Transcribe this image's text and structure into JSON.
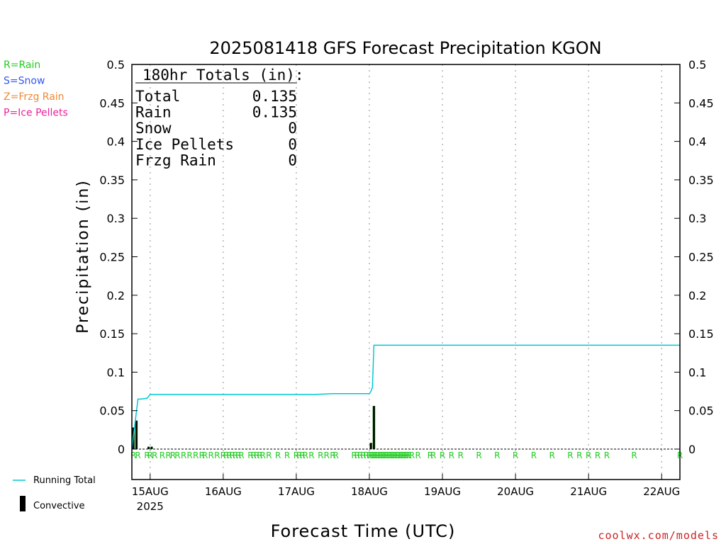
{
  "chart_data": {
    "type": "bar",
    "title": "2025081418 GFS Forecast Precipitation KGON",
    "ylabel": "Precipitation (in)",
    "xlabel": "Forecast Time (UTC)",
    "credit": "coolwx.com/models",
    "ylim": [
      0,
      0.5
    ],
    "yticks": [
      {
        "value": 0,
        "label": "0"
      },
      {
        "value": 0.05,
        "label": "0.05"
      },
      {
        "value": 0.1,
        "label": "0.1"
      },
      {
        "value": 0.15,
        "label": "0.15"
      },
      {
        "value": 0.2,
        "label": "0.2"
      },
      {
        "value": 0.25,
        "label": "0.25"
      },
      {
        "value": 0.3,
        "label": "0.3"
      },
      {
        "value": 0.35,
        "label": "0.35"
      },
      {
        "value": 0.4,
        "label": "0.4"
      },
      {
        "value": 0.45,
        "label": "0.45"
      },
      {
        "value": 0.5,
        "label": "0.5"
      }
    ],
    "xlim_hours": [
      -6,
      174
    ],
    "xticks": [
      {
        "hour": 0,
        "label": "15AUG",
        "sub": "2025"
      },
      {
        "hour": 24,
        "label": "16AUG"
      },
      {
        "hour": 48,
        "label": "17AUG"
      },
      {
        "hour": 72,
        "label": "18AUG"
      },
      {
        "hour": 96,
        "label": "19AUG"
      },
      {
        "hour": 120,
        "label": "20AUG"
      },
      {
        "hour": 144,
        "label": "21AUG"
      },
      {
        "hour": 168,
        "label": "22AUG"
      }
    ],
    "type_legend": [
      {
        "label": "R=Rain",
        "color": "#22cc22"
      },
      {
        "label": "S=Snow",
        "color": "#3355ee"
      },
      {
        "label": "Z=Frzg Rain",
        "color": "#ee8833"
      },
      {
        "label": "P=Ice Pellets",
        "color": "#ee2299"
      }
    ],
    "series_legend": [
      {
        "label": "Running Total",
        "color": "#00c8d2",
        "kind": "line"
      },
      {
        "label": "Convective",
        "color": "#000000",
        "kind": "bar"
      }
    ],
    "totals": {
      "header": "180hr Totals (in):",
      "rows": [
        {
          "label": "Total",
          "value": "0.135"
        },
        {
          "label": "Rain",
          "value": "0.135"
        },
        {
          "label": "Snow",
          "value": "0"
        },
        {
          "label": "Ice Pellets",
          "value": "0"
        },
        {
          "label": "Frzg Rain",
          "value": "0"
        }
      ]
    },
    "precip_bars": [
      {
        "hour": -5.5,
        "value": 0.028,
        "convective": 0.028
      },
      {
        "hour": -4.5,
        "value": 0.037,
        "convective": 0.037
      },
      {
        "hour": -0.5,
        "value": 0.003,
        "convective": 0.003
      },
      {
        "hour": 0.5,
        "value": 0.003,
        "convective": 0.003
      },
      {
        "hour": 72.5,
        "value": 0.008,
        "convective": 0.008
      },
      {
        "hour": 73.5,
        "value": 0.056,
        "convective": 0.056
      }
    ],
    "running_total": {
      "name": "Running Total",
      "hours": [
        -6,
        -4,
        -3,
        -1,
        0,
        5,
        24,
        48,
        54,
        60,
        72,
        72.5,
        73,
        73.5,
        74,
        96,
        120,
        144,
        174
      ],
      "values": [
        0,
        0.065,
        0.065,
        0.066,
        0.071,
        0.071,
        0.071,
        0.071,
        0.071,
        0.072,
        0.072,
        0.075,
        0.08,
        0.135,
        0.135,
        0.135,
        0.135,
        0.135,
        0.135
      ]
    },
    "ptype_marks": {
      "label": "R",
      "hours": [
        -5.5,
        -4,
        -1,
        0,
        1.5,
        4,
        6,
        7.5,
        9,
        11,
        13,
        15,
        17,
        18,
        20,
        22,
        24,
        25,
        26,
        27,
        28,
        29,
        30,
        33,
        34,
        35,
        36,
        37,
        39,
        42,
        45,
        48,
        49,
        50,
        51,
        53,
        56,
        58,
        60,
        61,
        67,
        68,
        69,
        70,
        71,
        72,
        72.5,
        73,
        73.5,
        74,
        74.5,
        75,
        75.5,
        76,
        76.5,
        77,
        77.5,
        78,
        78.5,
        79,
        79.5,
        80,
        80.5,
        81,
        81.5,
        82,
        82.5,
        83,
        83.5,
        84,
        84.5,
        85,
        86,
        88,
        92,
        93,
        96,
        99,
        102,
        108,
        114,
        120,
        126,
        132,
        138,
        141,
        144,
        147,
        150,
        159,
        174
      ]
    }
  }
}
